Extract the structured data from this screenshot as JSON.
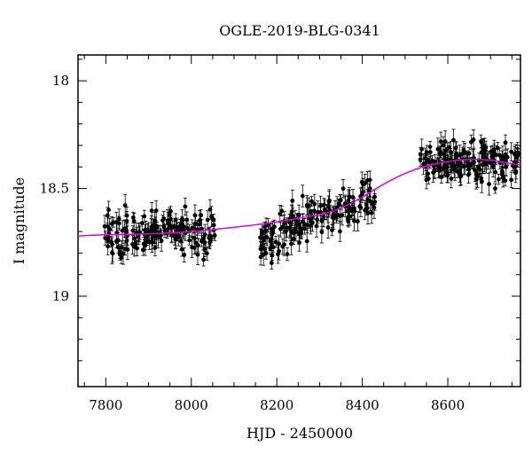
{
  "chart_data": {
    "type": "scatter",
    "title": "OGLE-2019-BLG-0341",
    "xlabel": "HJD - 2450000",
    "ylabel": "I magnitude",
    "xlim": [
      7735,
      8770
    ],
    "ylim": [
      19.42,
      17.88
    ],
    "y_inverted": true,
    "x_ticks": [
      7800,
      8000,
      8200,
      8400,
      8600
    ],
    "x_tick_labels": [
      "7800",
      "8000",
      "8200",
      "8400",
      "8600"
    ],
    "y_ticks": [
      18,
      18.5,
      19
    ],
    "y_tick_labels": [
      "18",
      "18.5",
      "19"
    ],
    "grid": false,
    "colors": {
      "points": "#000000",
      "model": "#e000e0"
    },
    "segments": [
      {
        "x_range": [
          7795,
          8055
        ],
        "level": [
          18.72,
          18.69
        ],
        "scatter": 0.05,
        "count": 170
      },
      {
        "x_range": [
          8160,
          8430
        ],
        "level": [
          18.74,
          18.52
        ],
        "scatter": 0.05,
        "count": 170
      },
      {
        "x_range": [
          8535,
          8765
        ],
        "level": [
          18.37,
          18.38
        ],
        "scatter": 0.045,
        "count": 170
      }
    ],
    "model_curve": {
      "x": [
        7735,
        7800,
        7900,
        8000,
        8100,
        8200,
        8300,
        8350,
        8400,
        8450,
        8500,
        8550,
        8600,
        8650,
        8700,
        8750,
        8770
      ],
      "y": [
        18.72,
        18.715,
        18.71,
        18.7,
        18.68,
        18.655,
        18.62,
        18.59,
        18.54,
        18.48,
        18.43,
        18.395,
        18.375,
        18.365,
        18.368,
        18.385,
        18.39
      ]
    }
  }
}
